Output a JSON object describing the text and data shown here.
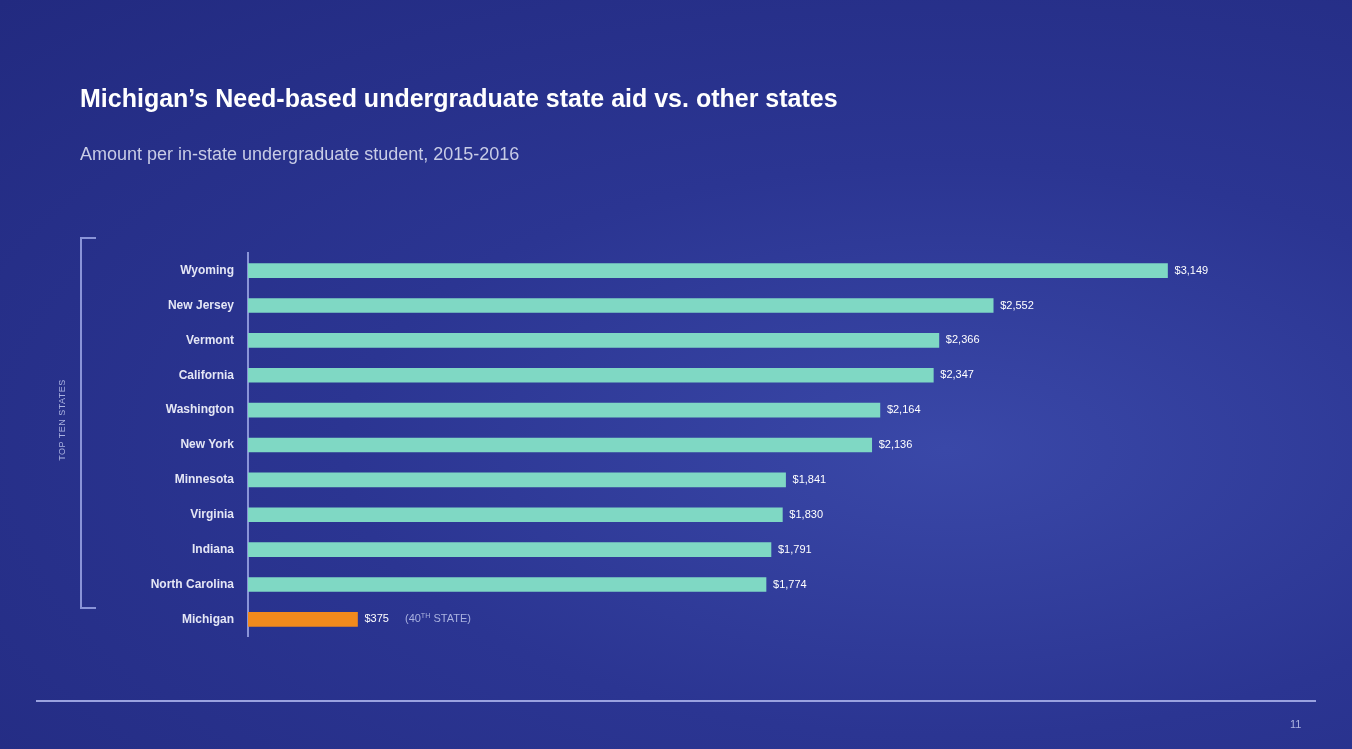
{
  "chart_data": {
    "type": "bar",
    "orientation": "horizontal",
    "title": "Michigan’s Need-based undergraduate state aid vs. other states",
    "subtitle": "Amount per in-state undergraduate student, 2015-2016",
    "categories": [
      "Wyoming",
      "New Jersey",
      "Vermont",
      "California",
      "Washington",
      "New York",
      "Minnesota",
      "Virginia",
      "Indiana",
      "North Carolina",
      "Michigan"
    ],
    "values": [
      3149,
      2552,
      2366,
      2347,
      2164,
      2136,
      1841,
      1830,
      1791,
      1774,
      375
    ],
    "colors": [
      "#7fd8c4",
      "#7fd8c4",
      "#7fd8c4",
      "#7fd8c4",
      "#7fd8c4",
      "#7fd8c4",
      "#7fd8c4",
      "#7fd8c4",
      "#7fd8c4",
      "#7fd8c4",
      "#f28a1c"
    ],
    "value_labels": [
      "$3,149",
      "$2,552",
      "$2,366",
      "$2,347",
      "$2,164",
      "$2,136",
      "$1,841",
      "$1,830",
      "$1,791",
      "$1,774",
      "$375"
    ],
    "tick_labels": "y",
    "legend": false,
    "annotations": [
      "TOP TEN STATES",
      "(40$^{TH}$ STATE)",
      "11"
    ]
  }
}
